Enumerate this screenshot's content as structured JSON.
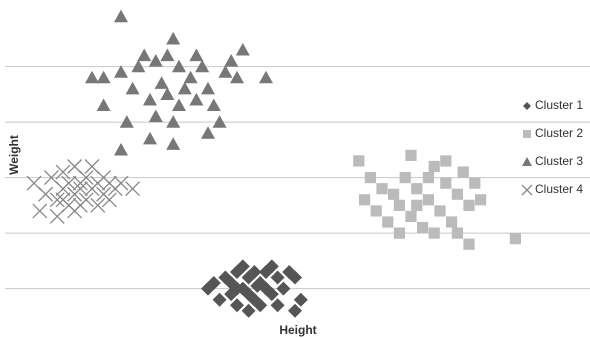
{
  "chart_data": {
    "type": "scatter",
    "x_label": "Height",
    "y_label": "Weight",
    "xlim": [
      0,
      10
    ],
    "ylim": [
      0.2,
      6.2
    ],
    "ygrid": [
      1,
      2,
      3,
      4,
      5
    ],
    "grid": true,
    "legend": "right",
    "series": [
      {
        "name": "Cluster 1",
        "color": "#555555",
        "marker": "diamond",
        "x": [
          3.6,
          3.8,
          3.9,
          4.0,
          4.1,
          4.2,
          4.3,
          4.4,
          4.5,
          4.6,
          4.7,
          4.8,
          4.9,
          3.7,
          4.0,
          4.2,
          4.4,
          4.1,
          4.3,
          4.5,
          3.9,
          4.6,
          5.0,
          5.1,
          5.0,
          4.2,
          3.5,
          4.7,
          4.0,
          4.35
        ],
        "values": [
          1.1,
          1.2,
          0.9,
          1.3,
          1.0,
          1.2,
          0.8,
          1.1,
          1.3,
          0.9,
          1.2,
          1.0,
          1.3,
          0.8,
          0.7,
          0.6,
          0.7,
          1.4,
          1.3,
          1.0,
          1.1,
          1.4,
          1.2,
          0.8,
          0.6,
          0.9,
          1.0,
          0.7,
          1.0,
          1.05
        ]
      },
      {
        "name": "Cluster 2",
        "color": "#bbbbbb",
        "marker": "square",
        "x": [
          6.1,
          6.3,
          6.2,
          6.4,
          6.5,
          6.6,
          6.7,
          6.8,
          6.9,
          7.0,
          7.1,
          7.0,
          7.2,
          7.3,
          7.4,
          7.5,
          7.6,
          7.7,
          7.8,
          7.9,
          8.0,
          7.8,
          8.1,
          8.2,
          7.6,
          7.4,
          6.8,
          8.0,
          8.8,
          7.3,
          7.1
        ],
        "values": [
          3.3,
          3.0,
          2.6,
          2.4,
          2.8,
          2.2,
          2.7,
          2.5,
          3.0,
          2.3,
          2.8,
          3.4,
          2.1,
          2.6,
          3.2,
          2.4,
          2.9,
          2.2,
          2.7,
          3.1,
          2.5,
          2.0,
          2.9,
          2.6,
          3.3,
          2.0,
          2.0,
          1.8,
          1.9,
          3.0,
          2.5
        ]
      },
      {
        "name": "Cluster 3",
        "color": "#777777",
        "marker": "triangle",
        "x": [
          2.0,
          2.9,
          1.5,
          1.7,
          2.0,
          2.3,
          2.4,
          2.6,
          2.7,
          2.8,
          2.5,
          2.6,
          2.9,
          3.0,
          3.1,
          3.2,
          3.3,
          3.4,
          3.5,
          3.6,
          3.7,
          3.8,
          4.0,
          4.1,
          4.5,
          1.7,
          2.1,
          2.0,
          2.5,
          2.9,
          3.5,
          3.0,
          2.8,
          3.9,
          3.3,
          2.2
        ],
        "values": [
          5.9,
          5.5,
          4.8,
          4.8,
          4.9,
          5.0,
          5.2,
          5.1,
          4.7,
          4.5,
          4.4,
          4.1,
          4.0,
          4.3,
          4.6,
          4.8,
          5.2,
          5.0,
          4.6,
          4.3,
          4.0,
          4.9,
          4.8,
          5.3,
          4.8,
          4.3,
          4.0,
          3.5,
          3.7,
          3.6,
          3.8,
          5.0,
          5.2,
          5.1,
          4.4,
          4.6
        ]
      },
      {
        "name": "Cluster 4",
        "color": "#888888",
        "marker": "x",
        "x": [
          0.5,
          0.7,
          0.6,
          0.8,
          0.9,
          1.0,
          1.0,
          1.1,
          1.1,
          1.2,
          1.2,
          1.3,
          1.3,
          1.4,
          1.4,
          1.5,
          1.6,
          1.6,
          1.7,
          1.7,
          1.8,
          1.9,
          2.0,
          2.2,
          0.9,
          1.2,
          1.5,
          1.8,
          1.0,
          1.3
        ],
        "values": [
          2.9,
          2.7,
          2.4,
          3.0,
          2.6,
          2.8,
          3.1,
          2.5,
          2.9,
          2.7,
          3.2,
          2.8,
          2.5,
          3.0,
          2.6,
          2.8,
          2.9,
          2.5,
          3.0,
          2.7,
          2.6,
          2.8,
          2.9,
          2.8,
          2.3,
          2.4,
          3.2,
          2.9,
          2.6,
          2.9
        ]
      }
    ]
  }
}
